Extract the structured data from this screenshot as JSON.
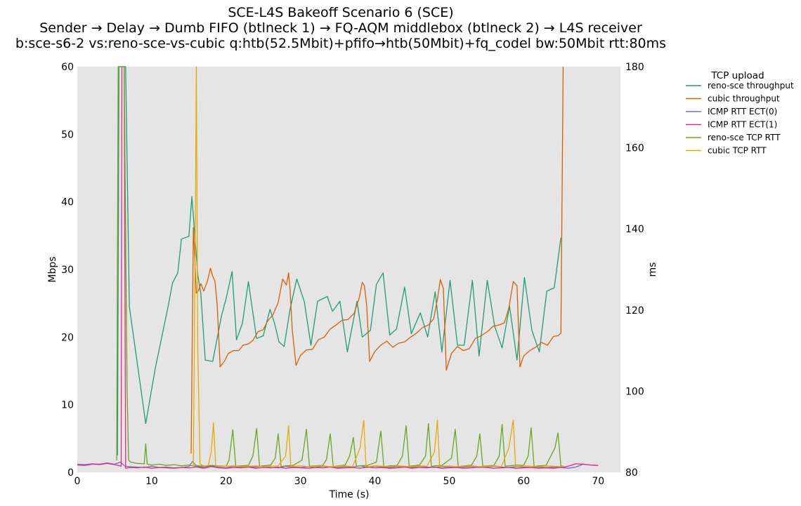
{
  "chart_data": {
    "type": "line",
    "title_lines": [
      "SCE-L4S Bakeoff Scenario 6 (SCE)",
      "Sender → Delay → Dumb FIFO (btlneck 1) → FQ-AQM middlebox (btlneck 2) → L4S receiver",
      "b:sce-s6-2 vs:reno-sce-vs-cubic q:htb(52.5Mbit)+pfifo→htb(50Mbit)+fq_codel bw:50Mbit rtt:80ms"
    ],
    "xlabel": "Time (s)",
    "ylabel_left": "Mbps",
    "ylabel_right": "ms",
    "xlim": [
      0,
      73
    ],
    "ylim_left": [
      0,
      60
    ],
    "ylim_right": [
      80,
      180
    ],
    "x_ticks": [
      "0",
      "10",
      "20",
      "30",
      "40",
      "50",
      "60",
      "70"
    ],
    "y_ticks_left": [
      "0",
      "10",
      "20",
      "30",
      "40",
      "50",
      "60"
    ],
    "y_ticks_right": [
      "80",
      "100",
      "120",
      "140",
      "160",
      "180"
    ],
    "grid": false,
    "background": "#e5e5e5",
    "legend_title": "TCP upload",
    "legend_position": "outside-right",
    "series": [
      {
        "name": "reno-sce throughput",
        "axis": "left",
        "color": "#1b9e77",
        "x": [
          5.4,
          5.6,
          6.0,
          6.5,
          7.0,
          9.2,
          10.5,
          12.2,
          12.8,
          13.5,
          14.0,
          15.0,
          15.4,
          16.2,
          16.6,
          17.2,
          18.2,
          19.4,
          20.0,
          20.8,
          21.4,
          22.2,
          23.0,
          24.1,
          25.0,
          25.9,
          26.5,
          27.1,
          27.8,
          28.6,
          29.5,
          30.5,
          31.4,
          32.3,
          33.6,
          34.3,
          35.3,
          36.3,
          37.6,
          38.3,
          39.4,
          40.2,
          41.1,
          42.0,
          42.9,
          44.0,
          44.9,
          46.1,
          47.1,
          48.1,
          49.0,
          50.1,
          51.1,
          52.0,
          53.1,
          54.0,
          55.1,
          56.1,
          57.1,
          58.1,
          59.1,
          60.1,
          61.1,
          62.1,
          63.1,
          64.1,
          65.0
        ],
        "values": [
          2.5,
          60,
          60,
          60,
          24.5,
          7.2,
          15.5,
          24.5,
          28,
          29.5,
          34.5,
          34.9,
          40.8,
          29.2,
          26.5,
          16.6,
          16.4,
          23.2,
          25.7,
          29.7,
          19.6,
          22.1,
          28.2,
          19.8,
          20.2,
          24.1,
          22.1,
          19.3,
          18.6,
          24.1,
          28.6,
          25.3,
          18.8,
          25.3,
          26.0,
          23.8,
          25.3,
          17.8,
          25.3,
          20.0,
          21.0,
          27.8,
          29.5,
          20.3,
          21.2,
          27.4,
          20.5,
          23.6,
          20.0,
          26.7,
          17.8,
          28.4,
          18.8,
          18.8,
          28.4,
          17.2,
          28.4,
          21.6,
          18.4,
          24.6,
          16.6,
          28.8,
          21.0,
          17.8,
          26.8,
          27.3,
          34.7
        ]
      },
      {
        "name": "cubic throughput",
        "axis": "left",
        "color": "#d95f02",
        "x": [
          15.3,
          15.6,
          16.0,
          16.3,
          16.6,
          17.0,
          17.5,
          17.9,
          18.2,
          18.5,
          18.8,
          19.2,
          19.8,
          20.3,
          21.0,
          21.7,
          22.3,
          23.0,
          23.6,
          24.3,
          25.0,
          25.6,
          26.3,
          27.0,
          27.6,
          28.1,
          28.4,
          28.6,
          28.9,
          29.4,
          30.0,
          30.8,
          31.6,
          32.4,
          33.2,
          34.0,
          34.8,
          35.6,
          36.4,
          37.2,
          37.9,
          38.3,
          38.6,
          38.9,
          39.3,
          40.0,
          40.8,
          41.6,
          42.4,
          43.2,
          44.0,
          44.8,
          45.6,
          46.4,
          47.2,
          47.9,
          48.4,
          48.8,
          49.2,
          49.6,
          50.3,
          51.1,
          51.9,
          52.7,
          53.5,
          54.3,
          55.1,
          55.9,
          56.7,
          57.4,
          58.0,
          58.6,
          59.1,
          59.5,
          60.0,
          60.8,
          61.6,
          62.4,
          63.2,
          64.0,
          64.6,
          65.0,
          65.3
        ],
        "values": [
          2.8,
          36.2,
          26.5,
          26.9,
          27.9,
          26.8,
          28.3,
          30.2,
          29.0,
          28.3,
          24.8,
          15.6,
          16.5,
          17.6,
          18.0,
          18.0,
          18.8,
          19.0,
          19.5,
          20.8,
          21.1,
          22.4,
          23.3,
          25.1,
          28.6,
          27.7,
          29.5,
          27.1,
          21.0,
          15.8,
          17.3,
          18.1,
          18.2,
          19.6,
          20.0,
          21.2,
          21.8,
          22.5,
          22.6,
          23.5,
          25.8,
          28.1,
          27.6,
          24.6,
          16.4,
          17.9,
          18.8,
          19.4,
          18.5,
          19.1,
          19.3,
          20.0,
          20.6,
          21.4,
          21.8,
          22.7,
          25.6,
          28.5,
          27.2,
          15.1,
          17.6,
          18.6,
          18.0,
          18.3,
          19.8,
          20.2,
          20.8,
          21.6,
          21.8,
          22.1,
          24.3,
          28.2,
          27.6,
          15.6,
          17.2,
          18.0,
          18.5,
          19.2,
          18.8,
          20.1,
          20.2,
          20.6,
          60
        ]
      },
      {
        "name": "ICMP RTT ECT(0)",
        "axis": "right",
        "color": "#7570b3",
        "x": [
          0,
          1,
          2,
          3,
          4,
          5,
          5.8,
          6.4,
          7,
          8,
          9,
          10,
          11,
          12,
          13,
          14,
          15,
          15.5,
          16,
          17,
          18,
          19,
          20,
          21,
          22,
          23,
          24,
          25,
          26,
          27,
          28,
          29,
          30,
          31,
          32,
          33,
          34,
          35,
          36,
          37,
          38,
          39,
          40,
          41,
          42,
          43,
          44,
          45,
          46,
          47,
          48,
          49,
          50,
          51,
          52,
          53,
          54,
          55,
          56,
          57,
          58,
          59,
          60,
          61,
          62,
          63,
          64,
          65,
          66,
          67,
          68,
          69,
          70
        ],
        "values": [
          82.0,
          81.9,
          82.1,
          82.0,
          82.3,
          82.0,
          82.5,
          81.5,
          81.4,
          81.3,
          81.2,
          81.5,
          81.2,
          81.3,
          81.1,
          81.2,
          81.4,
          82.7,
          81.5,
          81.2,
          81.6,
          81.3,
          81.1,
          81.5,
          81.2,
          81.4,
          81.3,
          81.6,
          81.2,
          81.1,
          81.5,
          81.3,
          81.2,
          81.4,
          81.2,
          81.5,
          81.3,
          81.2,
          81.4,
          81.3,
          81.6,
          81.2,
          81.5,
          81.3,
          81.2,
          81.4,
          81.3,
          81.2,
          81.5,
          81.3,
          81.2,
          81.4,
          81.3,
          81.2,
          81.3,
          81.4,
          81.2,
          81.3,
          81.5,
          81.3,
          81.2,
          81.4,
          81.3,
          81.2,
          81.3,
          81.2,
          81.3,
          81.2,
          81.0,
          81.3,
          82.0,
          81.8,
          81.7
        ]
      },
      {
        "name": "ICMP RTT ECT(1)",
        "axis": "right",
        "color": "#e7298a",
        "x": [
          0,
          1,
          2,
          3,
          4,
          5,
          5.9,
          6.0,
          6.15,
          6.3,
          6.5,
          7,
          8,
          9,
          10,
          11,
          12,
          13,
          14,
          15,
          16,
          17,
          18,
          19,
          20,
          21,
          22,
          23,
          24,
          25,
          26,
          27,
          28,
          29,
          30,
          31,
          32,
          33,
          34,
          35,
          36,
          37,
          38,
          39,
          40,
          41,
          42,
          43,
          44,
          45,
          46,
          47,
          48,
          49,
          50,
          51,
          52,
          53,
          54,
          55,
          56,
          57,
          58,
          59,
          60,
          61,
          62,
          63,
          64,
          65,
          66,
          67,
          68,
          69,
          70
        ],
        "values": [
          81.8,
          81.7,
          82.0,
          81.9,
          82.2,
          81.9,
          81.5,
          180,
          180,
          180,
          81.0,
          81.2,
          81.1,
          81.3,
          81.0,
          81.2,
          81.1,
          81.0,
          81.2,
          81.1,
          81.3,
          81.0,
          81.4,
          81.1,
          81.0,
          81.2,
          81.1,
          81.3,
          81.0,
          81.2,
          81.1,
          81.3,
          81.0,
          81.2,
          81.1,
          81.0,
          81.2,
          81.1,
          81.3,
          81.0,
          81.1,
          81.2,
          81.0,
          81.3,
          81.1,
          81.2,
          81.0,
          81.1,
          81.3,
          81.0,
          81.2,
          81.1,
          81.3,
          81.0,
          81.1,
          81.2,
          81.0,
          81.1,
          81.3,
          81.2,
          81.0,
          81.1,
          81.2,
          81.0,
          81.1,
          81.2,
          81.0,
          81.1,
          81.0,
          81.2,
          81.5,
          82.1,
          82.0,
          81.8,
          81.7
        ]
      },
      {
        "name": "reno-sce TCP RTT",
        "axis": "right",
        "color": "#66a61e",
        "x": [
          5.3,
          5.5,
          5.7,
          6.3,
          6.7,
          6.9,
          7.2,
          8,
          9,
          9.2,
          9.4,
          10,
          11,
          12,
          13,
          14,
          15,
          15.8,
          16.0,
          16.3,
          17,
          18,
          19,
          20,
          20.4,
          20.9,
          21.3,
          22,
          23,
          23.6,
          24.1,
          24.5,
          25,
          26,
          26.6,
          27.0,
          27.4,
          28,
          29,
          30.2,
          30.8,
          31.2,
          32,
          33,
          33.5,
          34.0,
          34.4,
          35,
          36,
          36.6,
          37.1,
          37.5,
          38,
          39,
          40.2,
          40.8,
          41.2,
          42,
          43,
          43.7,
          44.2,
          44.6,
          45,
          46,
          46.8,
          47.2,
          47.6,
          48,
          49,
          50.3,
          50.8,
          51.2,
          52,
          53,
          53.7,
          54.1,
          54.5,
          55,
          56,
          56.7,
          57.1,
          57.5,
          58,
          59,
          60,
          60.6,
          61.0,
          61.4,
          62,
          63,
          64.2,
          64.6,
          65.0,
          65.3
        ],
        "values": [
          83,
          180,
          180,
          180,
          100,
          83,
          82.5,
          82.2,
          82.1,
          87,
          82.0,
          81.8,
          82.0,
          81.7,
          81.9,
          81.6,
          81.8,
          81.5,
          81.7,
          81.6,
          81.5,
          81.7,
          81.6,
          81.5,
          83,
          90.5,
          81.5,
          81.6,
          81.7,
          84,
          90.8,
          81.5,
          81.6,
          81.8,
          83.5,
          89.5,
          81.4,
          81.6,
          81.7,
          83,
          90.6,
          81.5,
          81.6,
          81.7,
          83.2,
          89.5,
          81.4,
          81.6,
          81.8,
          84,
          88.6,
          81.5,
          81.6,
          81.7,
          82.5,
          90.2,
          81.4,
          81.6,
          81.7,
          84,
          91.5,
          81.5,
          81.6,
          81.8,
          84,
          92.0,
          81.4,
          81.6,
          81.7,
          83.5,
          90.6,
          81.4,
          81.6,
          81.8,
          84,
          89.5,
          81.5,
          81.6,
          81.7,
          84,
          91.8,
          81.5,
          81.6,
          81.8,
          81.7,
          84,
          91.0,
          81.4,
          81.6,
          81.7,
          86,
          89.7,
          81.5,
          81.6
        ]
      },
      {
        "name": "cubic TCP RTT",
        "axis": "right",
        "color": "#e6ab02",
        "x": [
          15.6,
          15.9,
          16.0,
          16.2,
          16.5,
          17,
          17.6,
          18.0,
          18.3,
          18.6,
          19,
          20,
          21,
          22,
          23,
          24,
          25,
          26,
          27,
          28.0,
          28.4,
          28.7,
          29,
          30,
          31,
          32,
          33,
          34,
          35,
          36,
          37,
          38.0,
          38.5,
          38.8,
          39.2,
          40,
          41,
          42,
          43,
          44,
          45,
          46,
          47,
          48.0,
          48.4,
          48.7,
          49.0,
          50,
          51,
          52,
          53,
          54,
          55,
          56,
          57,
          58.0,
          58.6,
          58.9,
          59.2,
          60,
          61,
          62,
          63,
          64,
          65,
          65.3
        ],
        "values": [
          81.5,
          150,
          180,
          110,
          82.0,
          81.6,
          81.7,
          85,
          92.2,
          81.5,
          81.6,
          81.5,
          81.6,
          81.4,
          81.5,
          81.6,
          81.4,
          81.5,
          81.6,
          84,
          91.5,
          81.4,
          81.5,
          81.6,
          81.4,
          81.5,
          81.6,
          81.4,
          81.5,
          81.6,
          81.4,
          86,
          92.8,
          81.5,
          81.4,
          81.6,
          81.5,
          81.4,
          81.6,
          81.5,
          81.4,
          81.6,
          81.5,
          85,
          92.9,
          81.4,
          81.5,
          81.6,
          81.4,
          81.5,
          81.6,
          81.4,
          81.5,
          81.6,
          81.4,
          86,
          92.9,
          81.5,
          81.4,
          81.6,
          81.5,
          81.4,
          81.6,
          81.5,
          81.4,
          81.5
        ]
      }
    ]
  }
}
